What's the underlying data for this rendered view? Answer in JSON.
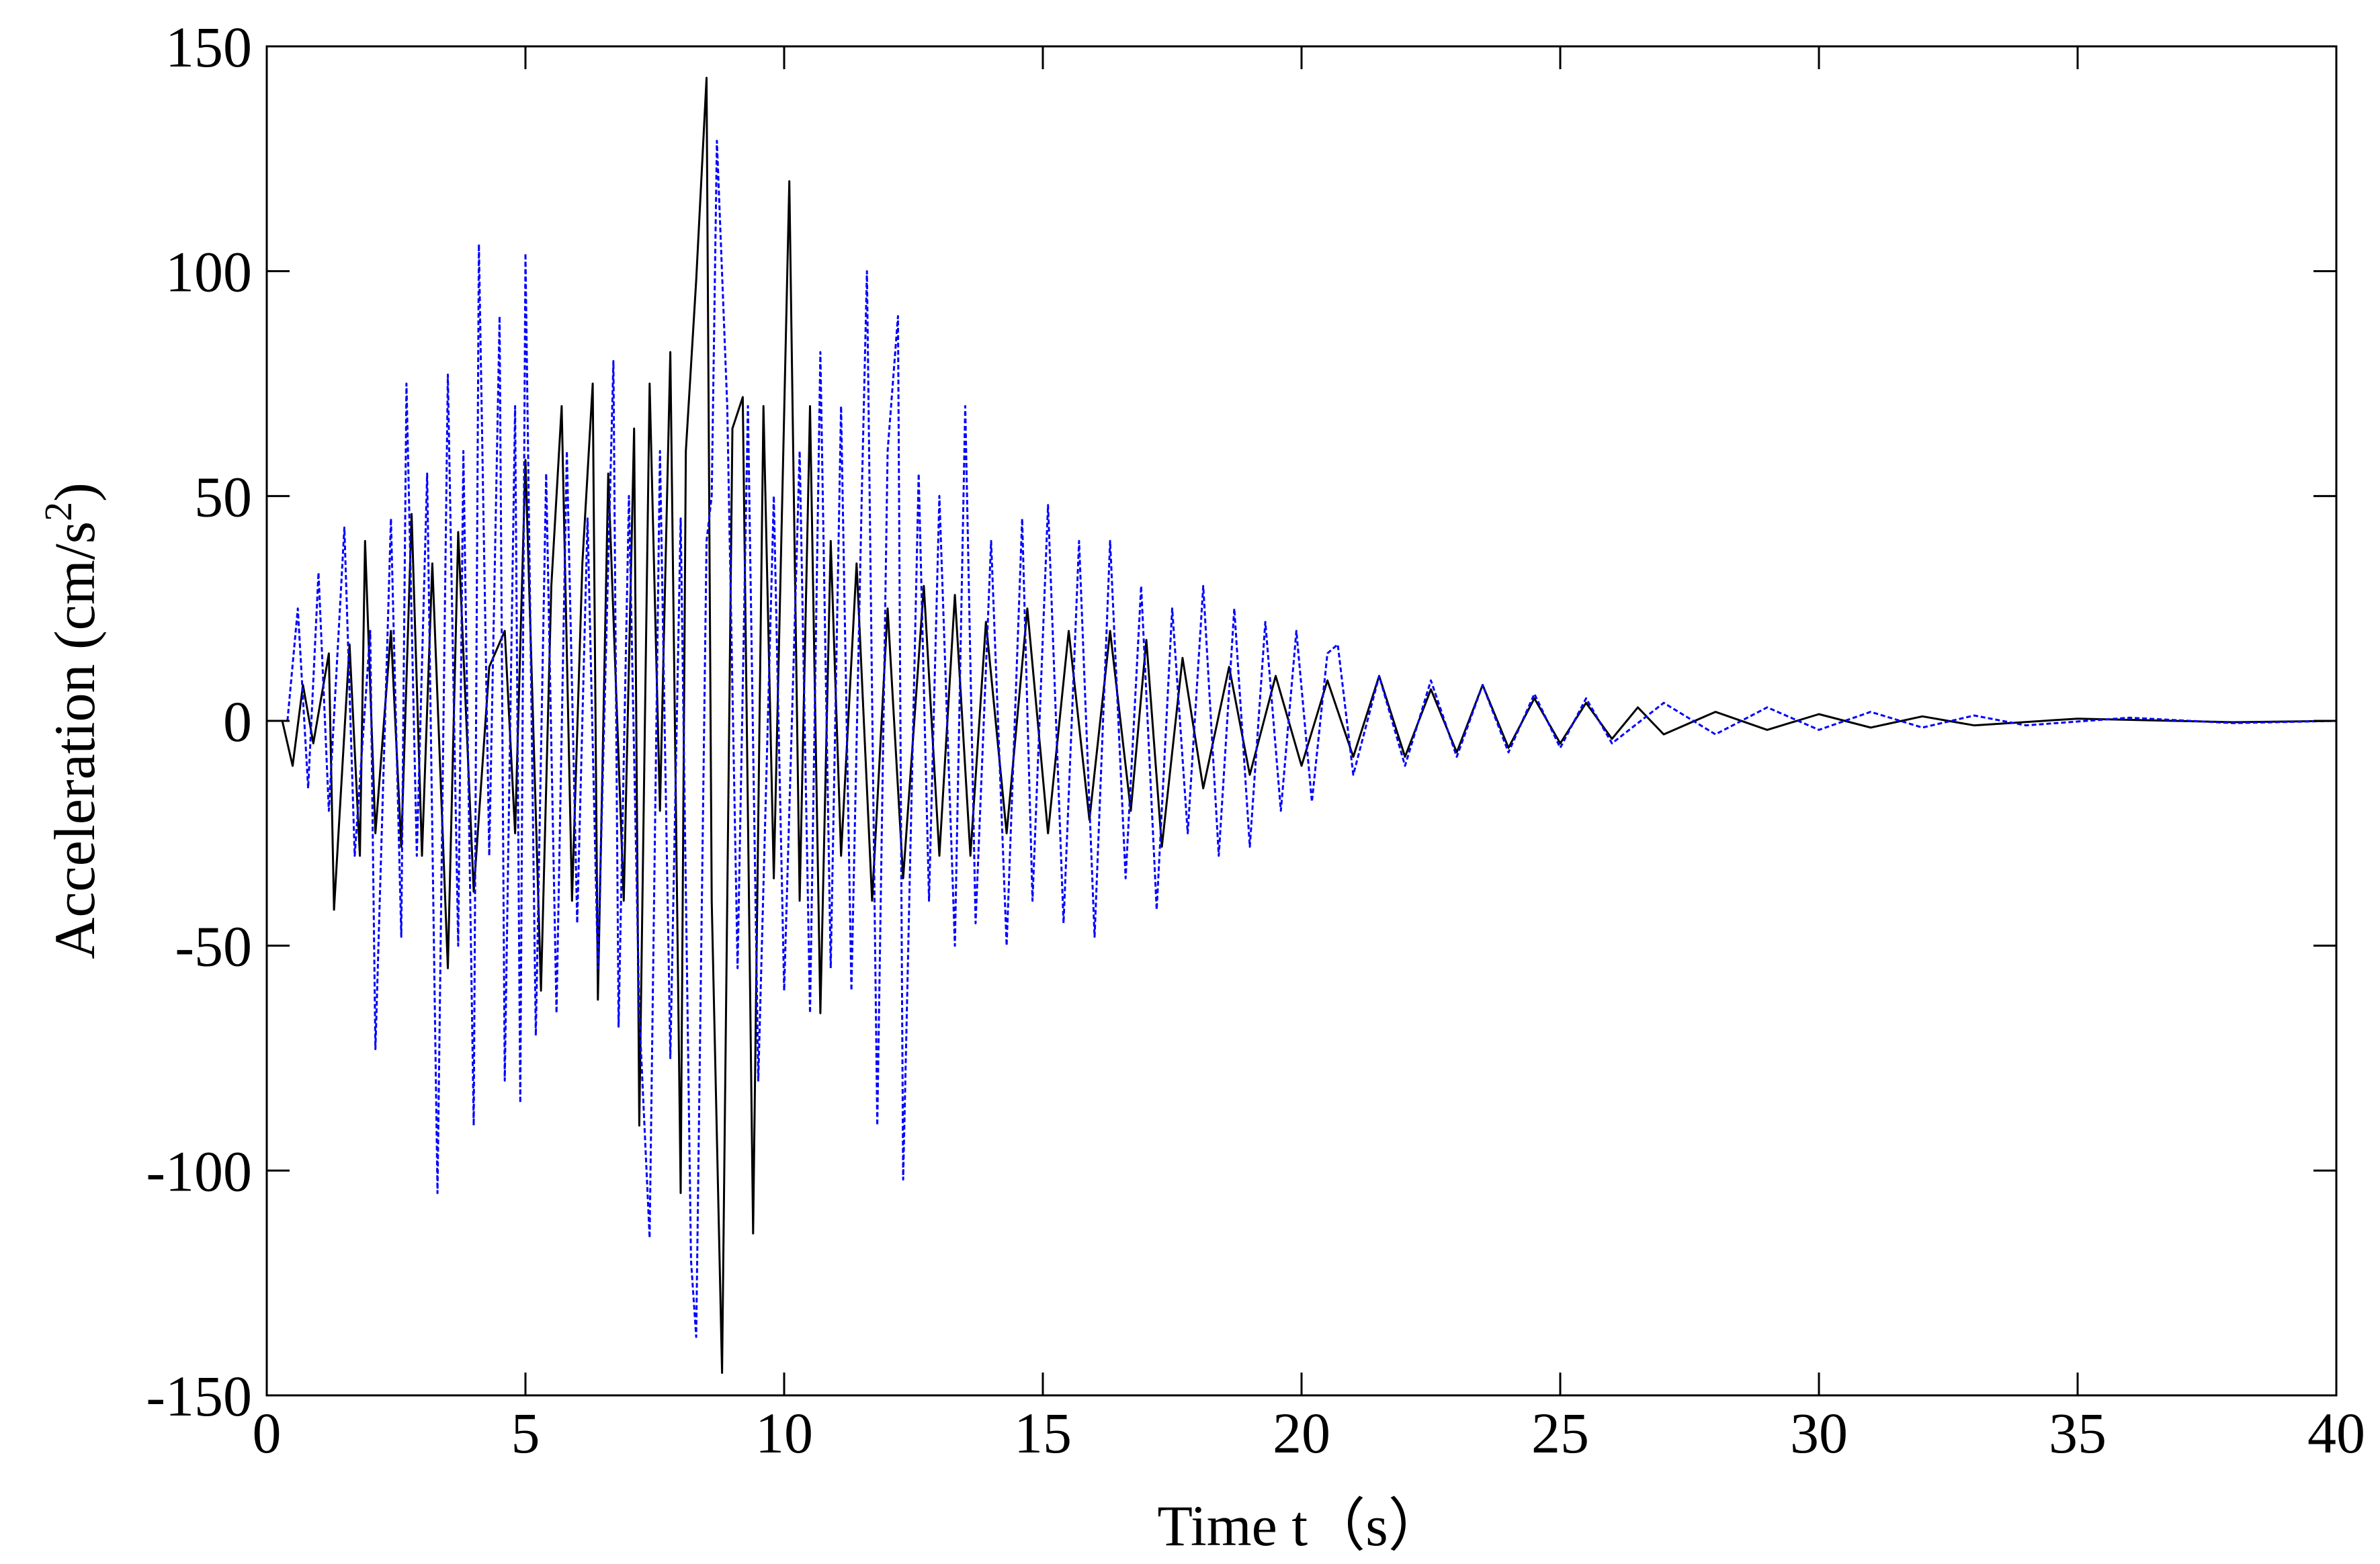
{
  "chart_data": {
    "type": "line",
    "xlabel": "Time t（s）",
    "ylabel_main": "Acceleration (cm/s",
    "ylabel_sup": "2",
    "ylabel_close": ")",
    "xlim": [
      0,
      40
    ],
    "ylim": [
      -150,
      150
    ],
    "xticks": [
      0,
      5,
      10,
      15,
      20,
      25,
      30,
      35,
      40
    ],
    "yticks": [
      -150,
      -100,
      -50,
      0,
      50,
      100,
      150
    ],
    "xtick_labels": [
      "0",
      "5",
      "10",
      "15",
      "20",
      "25",
      "30",
      "35",
      "40"
    ],
    "ytick_labels": [
      "-150",
      "-100",
      "-50",
      "0",
      "50",
      "100",
      "150"
    ],
    "grid": false,
    "legend": false,
    "series": [
      {
        "color": "#000000",
        "dash": "solid",
        "peaks": [
          [
            0.3,
            0
          ],
          [
            0.5,
            -10
          ],
          [
            0.7,
            8
          ],
          [
            0.9,
            -5
          ],
          [
            1.2,
            15
          ],
          [
            1.3,
            -42
          ],
          [
            1.6,
            17
          ],
          [
            1.8,
            -30
          ],
          [
            1.9,
            40
          ],
          [
            2.1,
            -25
          ],
          [
            2.4,
            20
          ],
          [
            2.6,
            -28
          ],
          [
            2.8,
            46
          ],
          [
            3.0,
            -30
          ],
          [
            3.2,
            35
          ],
          [
            3.5,
            -55
          ],
          [
            3.7,
            42
          ],
          [
            4.0,
            -38
          ],
          [
            4.3,
            12
          ],
          [
            4.6,
            20
          ],
          [
            4.8,
            -25
          ],
          [
            5.0,
            58
          ],
          [
            5.3,
            -60
          ],
          [
            5.5,
            30
          ],
          [
            5.7,
            70
          ],
          [
            5.9,
            -40
          ],
          [
            6.1,
            35
          ],
          [
            6.3,
            75
          ],
          [
            6.4,
            -62
          ],
          [
            6.6,
            55
          ],
          [
            6.9,
            -40
          ],
          [
            7.1,
            65
          ],
          [
            7.2,
            -90
          ],
          [
            7.4,
            75
          ],
          [
            7.6,
            -20
          ],
          [
            7.8,
            82
          ],
          [
            8.0,
            -105
          ],
          [
            8.1,
            60
          ],
          [
            8.3,
            98
          ],
          [
            8.5,
            143
          ],
          [
            8.6,
            -40
          ],
          [
            8.8,
            -145
          ],
          [
            9.0,
            65
          ],
          [
            9.2,
            72
          ],
          [
            9.4,
            -114
          ],
          [
            9.6,
            70
          ],
          [
            9.8,
            -35
          ],
          [
            10.1,
            120
          ],
          [
            10.3,
            -40
          ],
          [
            10.5,
            70
          ],
          [
            10.7,
            -65
          ],
          [
            10.9,
            40
          ],
          [
            11.1,
            -30
          ],
          [
            11.4,
            35
          ],
          [
            11.7,
            -40
          ],
          [
            12.0,
            25
          ],
          [
            12.3,
            -35
          ],
          [
            12.7,
            30
          ],
          [
            13.0,
            -30
          ],
          [
            13.3,
            28
          ],
          [
            13.6,
            -30
          ],
          [
            13.9,
            22
          ],
          [
            14.3,
            -25
          ],
          [
            14.7,
            25
          ],
          [
            15.1,
            -25
          ],
          [
            15.5,
            20
          ],
          [
            15.9,
            -22
          ],
          [
            16.3,
            20
          ],
          [
            16.7,
            -20
          ],
          [
            17.0,
            18
          ],
          [
            17.3,
            -28
          ],
          [
            17.7,
            14
          ],
          [
            18.1,
            -15
          ],
          [
            18.6,
            12
          ],
          [
            19.0,
            -12
          ],
          [
            19.5,
            10
          ],
          [
            20.0,
            -10
          ],
          [
            20.5,
            9
          ],
          [
            21.0,
            -8
          ],
          [
            21.5,
            10
          ],
          [
            22.0,
            -8
          ],
          [
            22.5,
            7
          ],
          [
            23.0,
            -7
          ],
          [
            23.5,
            8
          ],
          [
            24.0,
            -6
          ],
          [
            24.5,
            5
          ],
          [
            25.0,
            -5
          ],
          [
            25.5,
            4
          ],
          [
            26.0,
            -4
          ],
          [
            26.5,
            3
          ],
          [
            27.0,
            -3
          ],
          [
            28.0,
            2
          ],
          [
            29.0,
            -2
          ],
          [
            30.0,
            1.5
          ],
          [
            31.0,
            -1.5
          ],
          [
            32.0,
            1
          ],
          [
            33.0,
            -1
          ],
          [
            35.0,
            0.5
          ],
          [
            38.0,
            -0.3
          ],
          [
            40.0,
            0
          ]
        ]
      },
      {
        "color": "#0000ff",
        "dash": "dotted",
        "peaks": [
          [
            0.4,
            0
          ],
          [
            0.6,
            25
          ],
          [
            0.8,
            -15
          ],
          [
            1.0,
            33
          ],
          [
            1.2,
            -20
          ],
          [
            1.5,
            43
          ],
          [
            1.7,
            -30
          ],
          [
            2.0,
            20
          ],
          [
            2.1,
            -73
          ],
          [
            2.4,
            45
          ],
          [
            2.6,
            -48
          ],
          [
            2.7,
            75
          ],
          [
            2.9,
            -30
          ],
          [
            3.1,
            55
          ],
          [
            3.3,
            -105
          ],
          [
            3.5,
            77
          ],
          [
            3.7,
            -50
          ],
          [
            3.8,
            60
          ],
          [
            4.0,
            -90
          ],
          [
            4.1,
            106
          ],
          [
            4.3,
            -30
          ],
          [
            4.5,
            90
          ],
          [
            4.6,
            -80
          ],
          [
            4.8,
            70
          ],
          [
            4.9,
            -85
          ],
          [
            5.0,
            104
          ],
          [
            5.2,
            -70
          ],
          [
            5.4,
            55
          ],
          [
            5.6,
            -65
          ],
          [
            5.8,
            60
          ],
          [
            6.0,
            -45
          ],
          [
            6.2,
            45
          ],
          [
            6.4,
            -55
          ],
          [
            6.7,
            80
          ],
          [
            6.8,
            -68
          ],
          [
            7.0,
            50
          ],
          [
            7.2,
            -65
          ],
          [
            7.4,
            -115
          ],
          [
            7.6,
            60
          ],
          [
            7.8,
            -75
          ],
          [
            8.0,
            45
          ],
          [
            8.2,
            -120
          ],
          [
            8.3,
            -137
          ],
          [
            8.5,
            40
          ],
          [
            8.6,
            50
          ],
          [
            8.7,
            129
          ],
          [
            8.9,
            70
          ],
          [
            9.1,
            -55
          ],
          [
            9.3,
            70
          ],
          [
            9.5,
            -80
          ],
          [
            9.8,
            50
          ],
          [
            10.0,
            -60
          ],
          [
            10.3,
            60
          ],
          [
            10.5,
            -65
          ],
          [
            10.7,
            82
          ],
          [
            10.9,
            -55
          ],
          [
            11.1,
            70
          ],
          [
            11.3,
            -60
          ],
          [
            11.5,
            50
          ],
          [
            11.6,
            100
          ],
          [
            11.8,
            -90
          ],
          [
            12.0,
            60
          ],
          [
            12.2,
            90
          ],
          [
            12.3,
            -102
          ],
          [
            12.6,
            55
          ],
          [
            12.8,
            -40
          ],
          [
            13.0,
            50
          ],
          [
            13.3,
            -50
          ],
          [
            13.5,
            70
          ],
          [
            13.7,
            -45
          ],
          [
            14.0,
            40
          ],
          [
            14.3,
            -50
          ],
          [
            14.6,
            45
          ],
          [
            14.8,
            -40
          ],
          [
            15.1,
            48
          ],
          [
            15.4,
            -45
          ],
          [
            15.7,
            40
          ],
          [
            16.0,
            -48
          ],
          [
            16.3,
            40
          ],
          [
            16.6,
            -35
          ],
          [
            16.9,
            30
          ],
          [
            17.2,
            -42
          ],
          [
            17.5,
            25
          ],
          [
            17.8,
            -25
          ],
          [
            18.1,
            30
          ],
          [
            18.4,
            -30
          ],
          [
            18.7,
            25
          ],
          [
            19.0,
            -28
          ],
          [
            19.3,
            22
          ],
          [
            19.6,
            -20
          ],
          [
            19.9,
            20
          ],
          [
            20.2,
            -18
          ],
          [
            20.5,
            15
          ],
          [
            20.7,
            17
          ],
          [
            21.0,
            -12
          ],
          [
            21.5,
            10
          ],
          [
            22.0,
            -10
          ],
          [
            22.5,
            9
          ],
          [
            23.0,
            -8
          ],
          [
            23.5,
            8
          ],
          [
            24.0,
            -7
          ],
          [
            24.5,
            6
          ],
          [
            25.0,
            -6
          ],
          [
            25.5,
            5
          ],
          [
            26.0,
            -5
          ],
          [
            27.0,
            4
          ],
          [
            28.0,
            -3
          ],
          [
            29.0,
            3
          ],
          [
            30.0,
            -2
          ],
          [
            31.0,
            2
          ],
          [
            32.0,
            -1.5
          ],
          [
            33.0,
            1.2
          ],
          [
            34.0,
            -1
          ],
          [
            36.0,
            0.7
          ],
          [
            38.0,
            -0.5
          ],
          [
            40.0,
            0
          ]
        ]
      }
    ]
  }
}
